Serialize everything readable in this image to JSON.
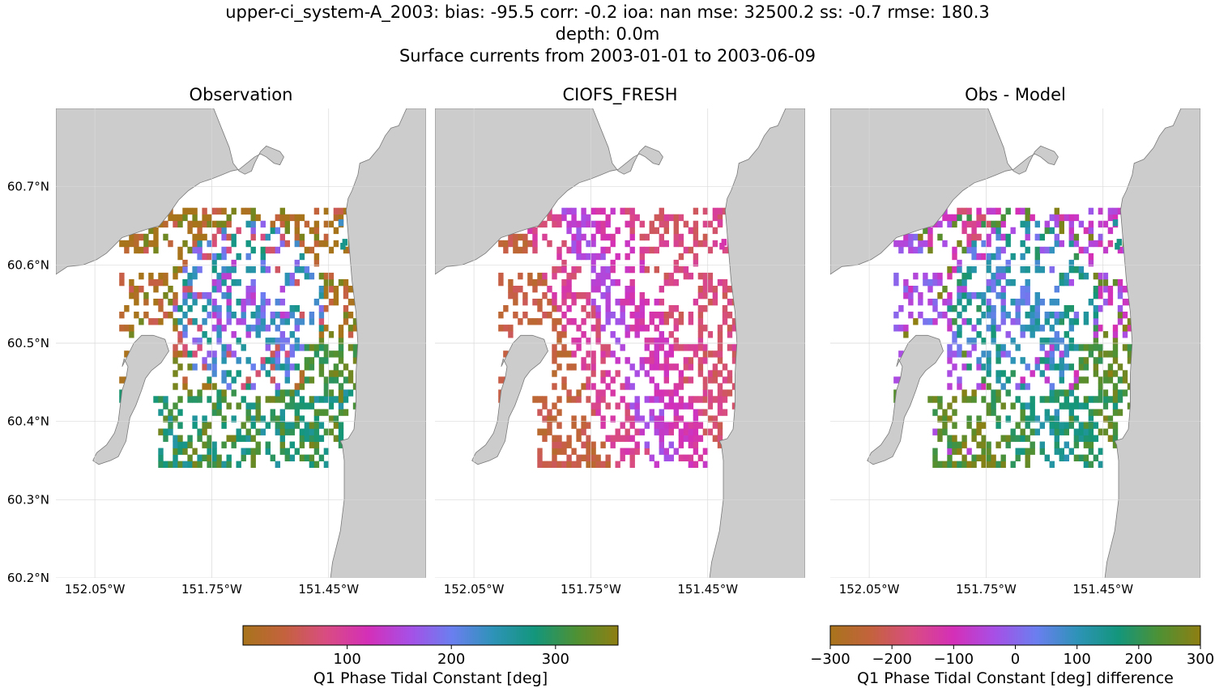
{
  "header": {
    "line1": "upper-ci_system-A_2003: bias: -95.5  corr: -0.2  ioa: nan  mse: 32500.2  ss: -0.7  rmse: 180.3",
    "line2": "depth: 0.0m",
    "line3": "Surface currents from 2003-01-01 to 2003-06-09"
  },
  "chart_data": [
    {
      "type": "heatmap",
      "title": "Observation",
      "x_ticks": [
        "152.05°W",
        "151.75°W",
        "151.45°W"
      ],
      "y_ticks": [
        "60.2°N",
        "60.3°N",
        "60.4°N",
        "60.5°N",
        "60.6°N",
        "60.7°N"
      ],
      "x_tick_values": [
        -152.05,
        -151.75,
        -151.45
      ],
      "y_tick_values": [
        60.2,
        60.3,
        60.4,
        60.5,
        60.6,
        60.7
      ],
      "xlim": [
        -152.15,
        -151.2
      ],
      "ylim": [
        60.2,
        60.8
      ],
      "grid": true,
      "field": "obs",
      "value_range": [
        0,
        360
      ]
    },
    {
      "type": "heatmap",
      "title": "CIOFS_FRESH",
      "x_ticks": [
        "152.05°W",
        "151.75°W",
        "151.45°W"
      ],
      "y_ticks": [
        "60.2°N",
        "60.3°N",
        "60.4°N",
        "60.5°N",
        "60.6°N",
        "60.7°N"
      ],
      "x_tick_values": [
        -152.05,
        -151.75,
        -151.45
      ],
      "y_tick_values": [
        60.2,
        60.3,
        60.4,
        60.5,
        60.6,
        60.7
      ],
      "xlim": [
        -152.15,
        -151.2
      ],
      "ylim": [
        60.2,
        60.8
      ],
      "grid": true,
      "field": "model",
      "value_range": [
        0,
        360
      ]
    },
    {
      "type": "heatmap",
      "title": "Obs - Model",
      "x_ticks": [
        "152.05°W",
        "151.75°W",
        "151.45°W"
      ],
      "y_ticks": [
        "60.2°N",
        "60.3°N",
        "60.4°N",
        "60.5°N",
        "60.6°N",
        "60.7°N"
      ],
      "x_tick_values": [
        -152.05,
        -151.75,
        -151.45
      ],
      "y_tick_values": [
        60.2,
        60.3,
        60.4,
        60.5,
        60.6,
        60.7
      ],
      "xlim": [
        -152.15,
        -151.2
      ],
      "ylim": [
        60.2,
        60.8
      ],
      "grid": true,
      "field": "diff",
      "value_range": [
        -300,
        300
      ]
    }
  ],
  "colorbars": [
    {
      "label": "Q1 Phase Tidal Constant [deg]",
      "range": [
        0,
        360
      ],
      "ticks": [
        100,
        200,
        300
      ],
      "tick_labels": [
        "100",
        "200",
        "300"
      ]
    },
    {
      "label": "Q1 Phase Tidal Constant [deg] difference",
      "range": [
        -300,
        300
      ],
      "ticks": [
        -300,
        -200,
        -100,
        0,
        100,
        200,
        300
      ],
      "tick_labels": [
        "−300",
        "−200",
        "−100",
        "0",
        "100",
        "200",
        "300"
      ]
    }
  ],
  "colors": {
    "land": "#cccccc",
    "land_edge": "#7a7a7a",
    "grid": "#d9d9d9",
    "colormap": [
      "#a8741b",
      "#c4623e",
      "#d94c82",
      "#d42fb8",
      "#a74fe6",
      "#6b7ef0",
      "#2e93b8",
      "#13967c",
      "#4e9134",
      "#8f7e12"
    ]
  }
}
